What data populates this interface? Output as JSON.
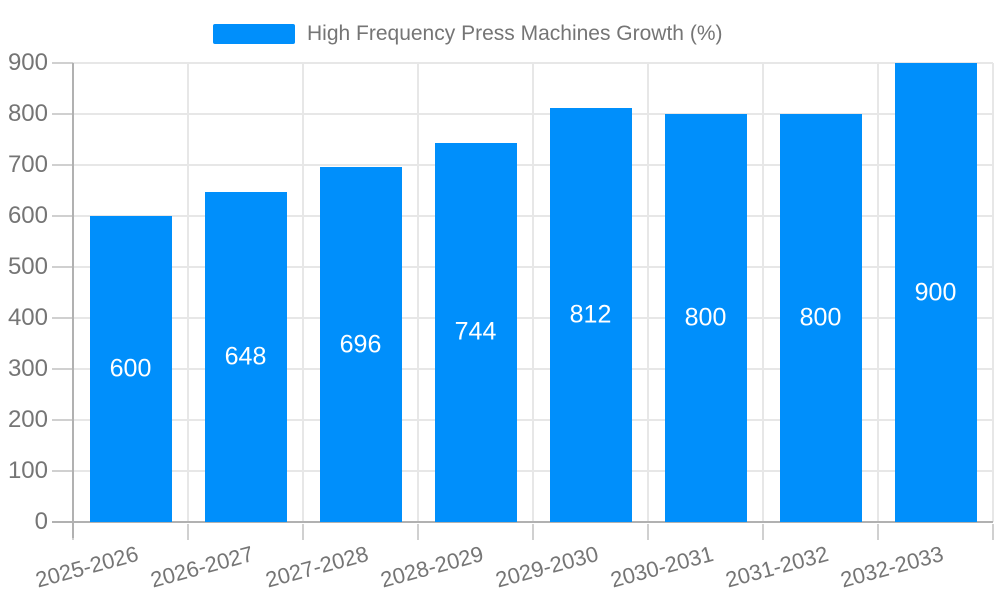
{
  "legend": {
    "label": "High Frequency Press Machines Growth (%)"
  },
  "chart_data": {
    "type": "bar",
    "title": "High Frequency Press Machines Growth (%)",
    "categories": [
      "2025-2026",
      "2026-2027",
      "2027-2028",
      "2028-2029",
      "2029-2030",
      "2030-2031",
      "2031-2032",
      "2032-2033"
    ],
    "values": [
      600,
      648,
      696,
      744,
      812,
      800,
      800,
      900
    ],
    "yticks": [
      0,
      100,
      200,
      300,
      400,
      500,
      600,
      700,
      800,
      900
    ],
    "ylim": [
      0,
      900
    ],
    "xlabel": "",
    "ylabel": "",
    "grid": true,
    "legend_position": "top",
    "colors": {
      "bar": "#008FFB",
      "value_label": "#ffffff",
      "axis_text": "#757575",
      "gridline": "#e7e7e7",
      "axis_line": "#b1b1b1",
      "tick": "#d0d0d0"
    }
  }
}
